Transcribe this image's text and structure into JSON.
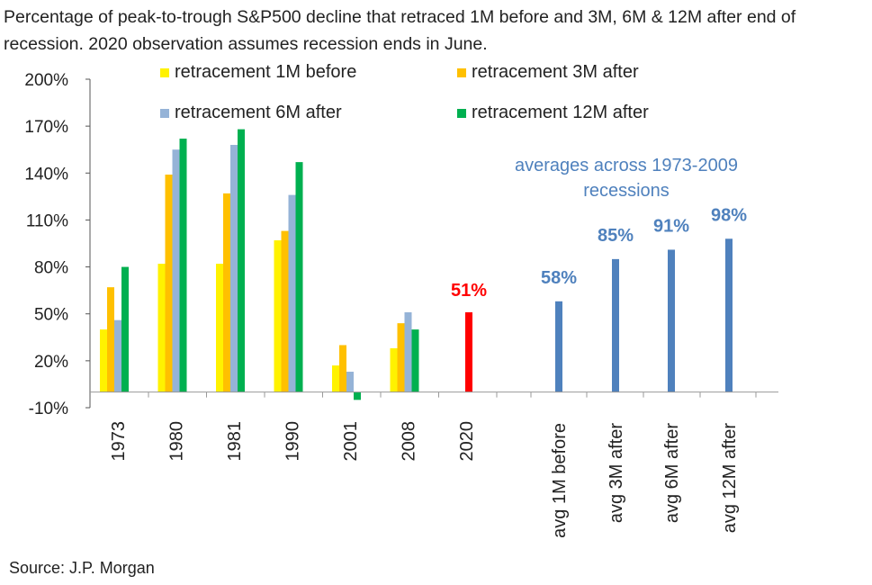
{
  "title": "Percentage of peak-to-trough S&P500 decline that retraced 1M before and 3M, 6M & 12M after end of recession. 2020 observation assumes recession ends in June.",
  "source": "Source: J.P. Morgan",
  "chart_data": {
    "type": "bar",
    "ylim": [
      -10,
      200
    ],
    "yticks": [
      -10,
      20,
      50,
      80,
      110,
      140,
      170,
      200
    ],
    "ytick_labels": [
      "-10%",
      "20%",
      "50%",
      "80%",
      "110%",
      "140%",
      "170%",
      "200%"
    ],
    "categories": [
      "1973",
      "1980",
      "1981",
      "1990",
      "2001",
      "2008",
      "2020"
    ],
    "series": [
      {
        "name": "retracement 1M before",
        "color": "#FFF200",
        "values": [
          40,
          82,
          82,
          97,
          17,
          28,
          null
        ]
      },
      {
        "name": "retracement 3M after",
        "color": "#FFC000",
        "values": [
          67,
          139,
          127,
          103,
          30,
          44,
          null
        ]
      },
      {
        "name": "retracement 6M after",
        "color": "#95B3D7",
        "values": [
          46,
          155,
          158,
          126,
          13,
          51,
          null
        ]
      },
      {
        "name": "retracement 12M after",
        "color": "#00B050",
        "values": [
          80,
          162,
          168,
          147,
          -5,
          40,
          null
        ]
      }
    ],
    "highlight": {
      "category": "2020",
      "value": 51,
      "label": "51%",
      "color": "#FF0000"
    },
    "averages": {
      "note": "averages across 1973-2009 recessions",
      "color": "#4F81BD",
      "categories": [
        "avg 1M before",
        "avg 3M after",
        "avg 6M after",
        "avg 12M after"
      ],
      "values": [
        58,
        85,
        91,
        98
      ],
      "labels": [
        "58%",
        "85%",
        "91%",
        "98%"
      ]
    },
    "grid": false,
    "legend_position": "top"
  }
}
